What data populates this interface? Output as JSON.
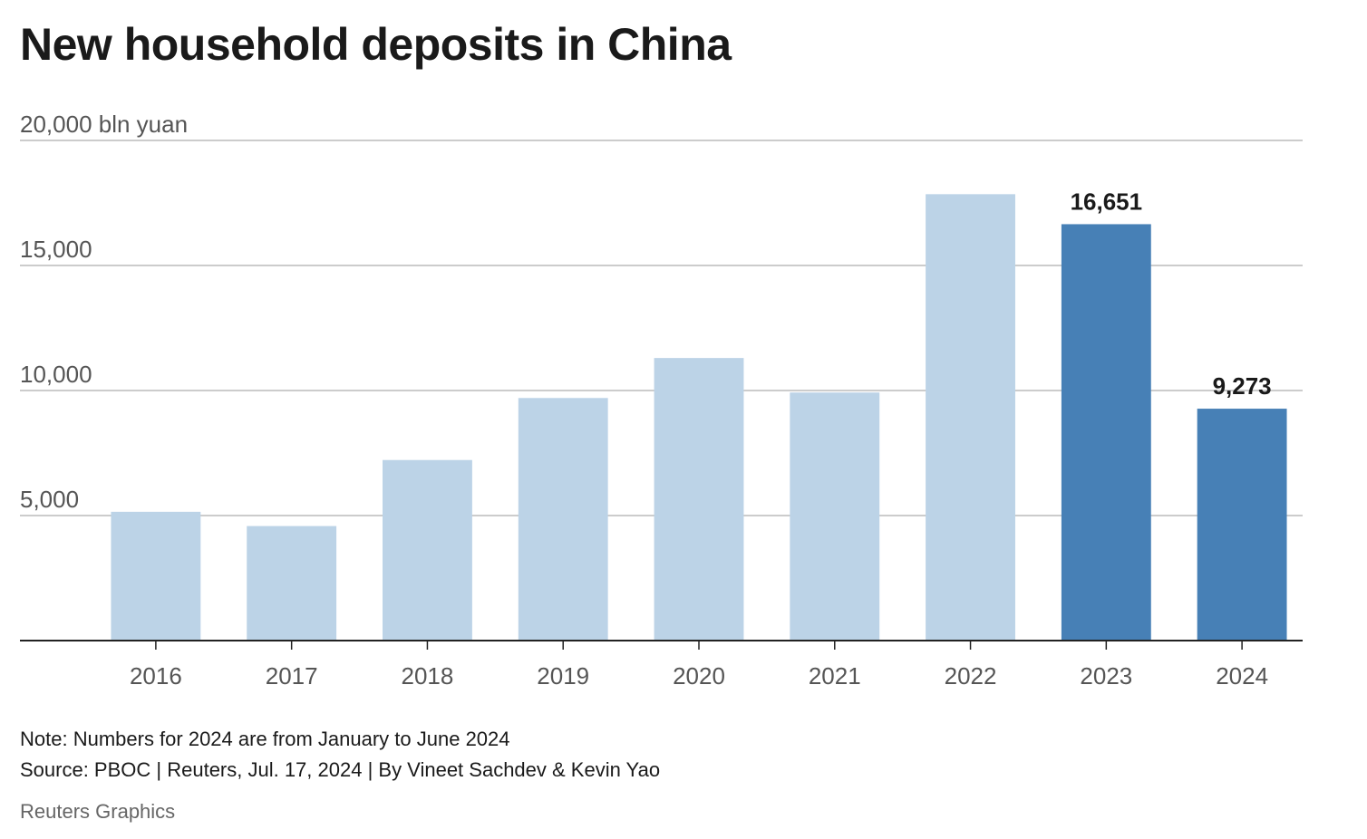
{
  "chart_data": {
    "type": "bar",
    "title": "New household deposits in China",
    "ylabel": "bln yuan",
    "ylim": [
      0,
      20000
    ],
    "y_ticks": [
      {
        "value": 20000,
        "label": "20,000 bln yuan"
      },
      {
        "value": 15000,
        "label": "15,000"
      },
      {
        "value": 10000,
        "label": "10,000"
      },
      {
        "value": 5000,
        "label": "5,000"
      }
    ],
    "grid": true,
    "categories": [
      "2016",
      "2017",
      "2018",
      "2019",
      "2020",
      "2021",
      "2022",
      "2023",
      "2024"
    ],
    "values": [
      5150,
      4580,
      7220,
      9700,
      11300,
      9920,
      17850,
      16651,
      9273
    ],
    "highlighted": [
      false,
      false,
      false,
      false,
      false,
      false,
      false,
      true,
      true
    ],
    "data_labels": [
      "",
      "",
      "",
      "",
      "",
      "",
      "",
      "16,651",
      "9,273"
    ],
    "colors": {
      "base": "#bcd3e7",
      "highlight": "#4780b6",
      "grid": "#cccccc",
      "axis": "#222222"
    }
  },
  "footer": {
    "note": "Note: Numbers for 2024 are from January to June 2024",
    "source": "Source: PBOC | Reuters, Jul. 17, 2024 | By Vineet Sachdev & Kevin Yao",
    "credit": "Reuters Graphics"
  }
}
